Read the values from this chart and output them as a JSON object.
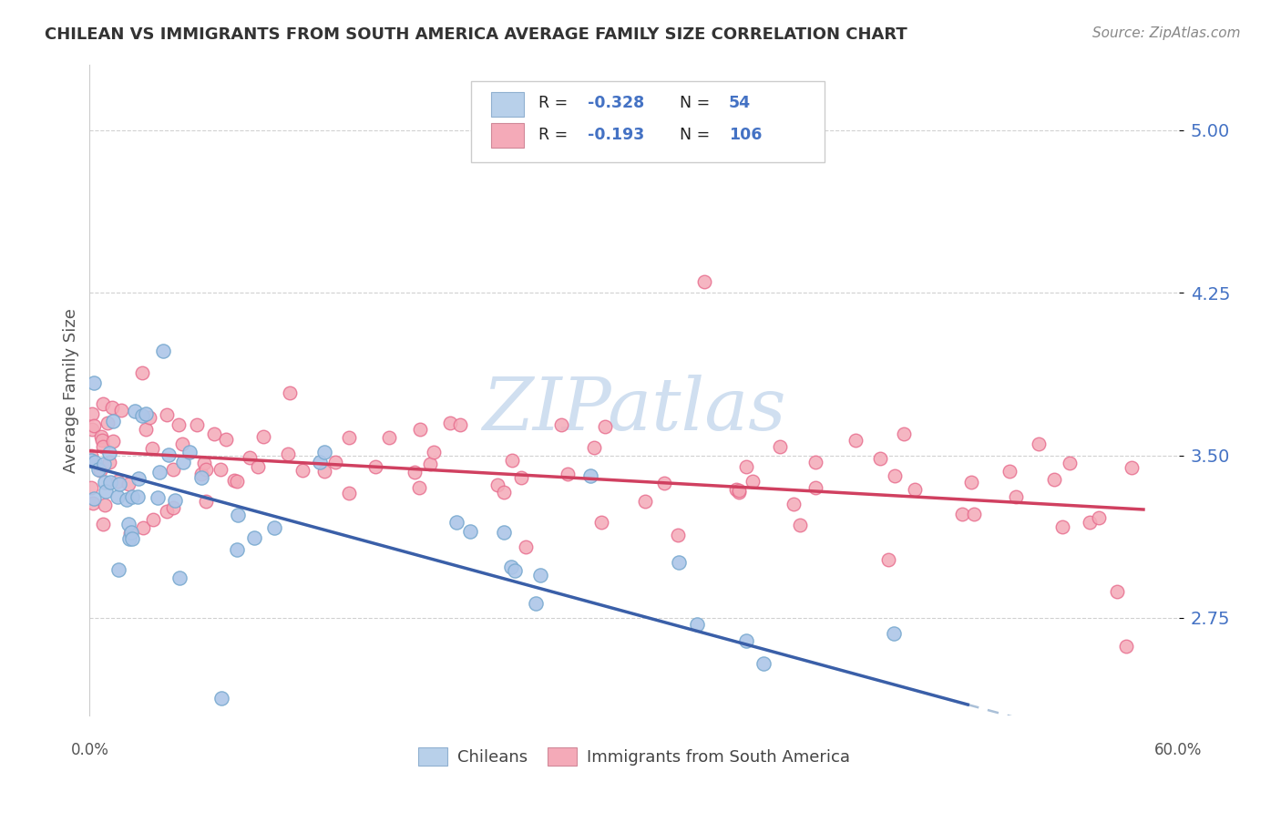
{
  "title": "CHILEAN VS IMMIGRANTS FROM SOUTH AMERICA AVERAGE FAMILY SIZE CORRELATION CHART",
  "source": "Source: ZipAtlas.com",
  "ylabel": "Average Family Size",
  "yticks": [
    2.75,
    3.5,
    4.25,
    5.0
  ],
  "xlim": [
    0.0,
    62.0
  ],
  "ylim": [
    2.3,
    5.3
  ],
  "chilean_color": "#adc6e8",
  "immigrant_color": "#f4aab8",
  "chilean_edge_color": "#7aaad0",
  "immigrant_edge_color": "#e87090",
  "chilean_line_color": "#3a5fa8",
  "immigrant_line_color": "#d04060",
  "dashed_ext_color": "#aac0d8",
  "legend_chilean_face": "#b8d0ea",
  "legend_immigrant_face": "#f4aab8",
  "R_chilean": "-0.328",
  "N_chilean": "54",
  "R_immigrant": "-0.193",
  "N_immigrant": "106",
  "background_color": "#ffffff",
  "grid_color": "#cccccc",
  "title_color": "#333333",
  "axis_label_color": "#4472c4",
  "watermark_color": "#d0dff0",
  "watermark_text": "ZIPatlas"
}
